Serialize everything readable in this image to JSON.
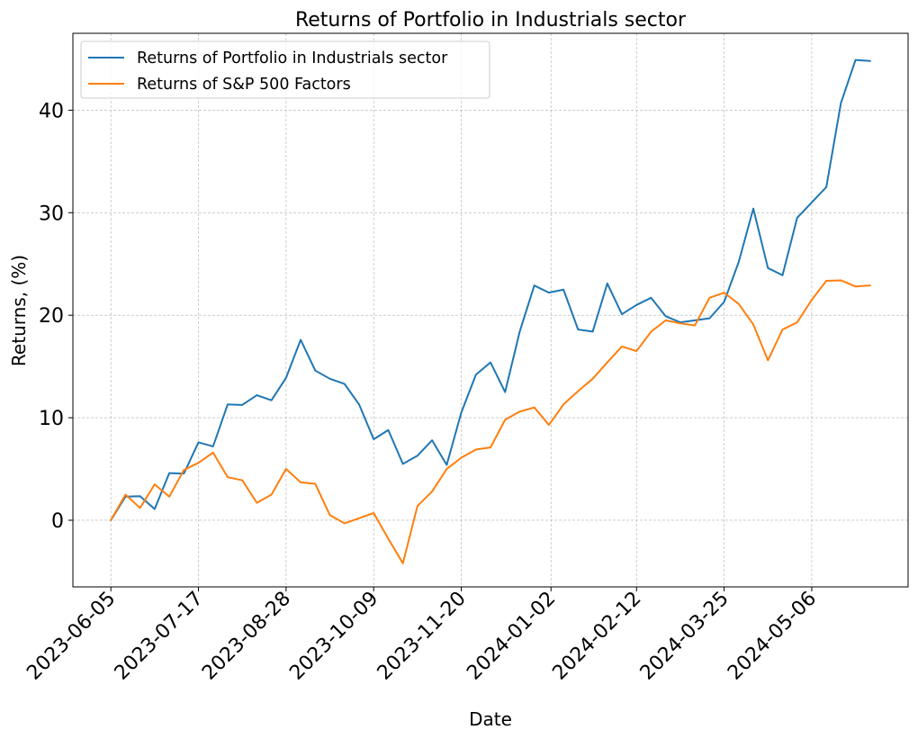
{
  "chart_data": {
    "type": "line",
    "title": "Returns of Portfolio in Industrials sector",
    "xlabel": "Date",
    "ylabel": "Returns, (%)",
    "x_start": "2023-06-05",
    "x_step_days": 7,
    "x_ticks": [
      "2023-06-05",
      "2023-07-17",
      "2023-08-28",
      "2023-10-09",
      "2023-11-20",
      "2024-01-02",
      "2024-02-12",
      "2024-03-25",
      "2024-05-06"
    ],
    "y_ticks": [
      0,
      10,
      20,
      30,
      40
    ],
    "ylim": [
      -6.5,
      47.5
    ],
    "grid": true,
    "legend_position": "top-left",
    "series": [
      {
        "name": "Returns of Portfolio in Industrials sector",
        "color": "#1f77b4",
        "values": [
          0,
          2.3,
          2.35,
          1.1,
          4.6,
          4.55,
          7.6,
          7.2,
          11.3,
          11.25,
          12.2,
          11.7,
          13.9,
          17.6,
          14.6,
          13.8,
          13.3,
          11.3,
          7.9,
          8.8,
          5.5,
          6.3,
          7.8,
          5.4,
          10.5,
          14.2,
          15.4,
          12.5,
          18.4,
          22.9,
          22.2,
          22.5,
          18.6,
          18.4,
          23.1,
          20.1,
          21.0,
          21.7,
          19.9,
          19.3,
          19.5,
          19.7,
          21.3,
          25.2,
          30.4,
          24.6,
          23.9,
          29.5,
          31.0,
          32.5,
          40.7,
          44.9,
          44.8
        ]
      },
      {
        "name": "Returns of S&P 500 Factors",
        "color": "#ff7f0e",
        "values": [
          0,
          2.5,
          1.2,
          3.5,
          2.3,
          4.9,
          5.6,
          6.6,
          4.2,
          3.9,
          1.7,
          2.5,
          5.0,
          3.7,
          3.55,
          0.5,
          -0.3,
          0.2,
          0.7,
          -1.8,
          -4.2,
          1.4,
          2.8,
          5.0,
          6.1,
          6.9,
          7.1,
          9.8,
          10.6,
          11.0,
          9.3,
          11.3,
          12.6,
          13.8,
          15.4,
          16.95,
          16.5,
          18.4,
          19.5,
          19.2,
          19.0,
          21.7,
          22.2,
          21.1,
          19.1,
          15.6,
          18.6,
          19.3,
          21.5,
          23.35,
          23.4,
          22.8,
          22.9
        ]
      }
    ]
  }
}
